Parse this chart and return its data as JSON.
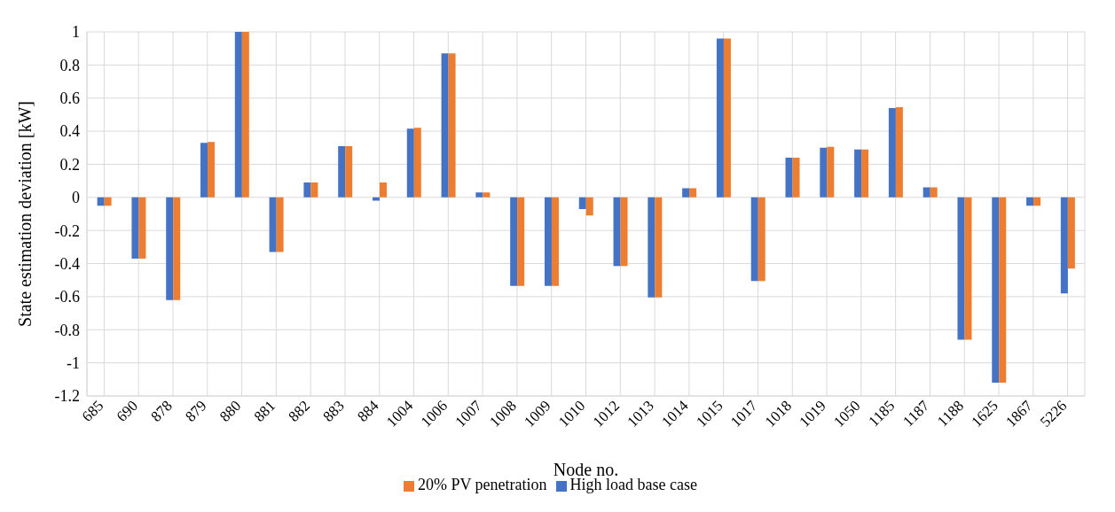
{
  "chart_data": {
    "type": "bar",
    "xlabel": "Node no.",
    "ylabel": "State estimation deviation [kW]",
    "categories": [
      "685",
      "690",
      "878",
      "879",
      "880",
      "881",
      "882",
      "883",
      "884",
      "1004",
      "1006",
      "1007",
      "1008",
      "1009",
      "1010",
      "1012",
      "1013",
      "1014",
      "1015",
      "1017",
      "1018",
      "1019",
      "1050",
      "1185",
      "1187",
      "1188",
      "1625",
      "1867",
      "5226"
    ],
    "series": [
      {
        "name": "High load base case",
        "color": "#4472c4",
        "values": [
          -0.05,
          -0.37,
          -0.62,
          0.33,
          1,
          -0.33,
          0.09,
          0.31,
          -0.02,
          0.415,
          0.87,
          0.03,
          -0.535,
          -0.535,
          -0.07,
          -0.415,
          -0.605,
          0.055,
          0.96,
          -0.505,
          0.24,
          0.3,
          0.29,
          0.54,
          0.06,
          -0.86,
          -1.12,
          -0.05,
          -0.58
        ]
      },
      {
        "name": "20% PV penetration",
        "color": "#ed7d31",
        "values": [
          -0.05,
          -0.37,
          -0.62,
          0.335,
          1,
          -0.33,
          0.09,
          0.31,
          0.09,
          0.42,
          0.87,
          0.03,
          -0.535,
          -0.535,
          -0.11,
          -0.415,
          -0.605,
          0.055,
          0.96,
          -0.505,
          0.24,
          0.305,
          0.29,
          0.545,
          0.06,
          -0.86,
          -1.12,
          -0.05,
          -0.43
        ]
      }
    ],
    "ylim": [
      -1.2,
      1
    ],
    "yticks": [
      -1.2,
      -1,
      -0.8,
      -0.6,
      -0.4,
      -0.2,
      0,
      0.2,
      0.4,
      0.6,
      0.8,
      1
    ],
    "grid": true,
    "legend": "bottom"
  }
}
